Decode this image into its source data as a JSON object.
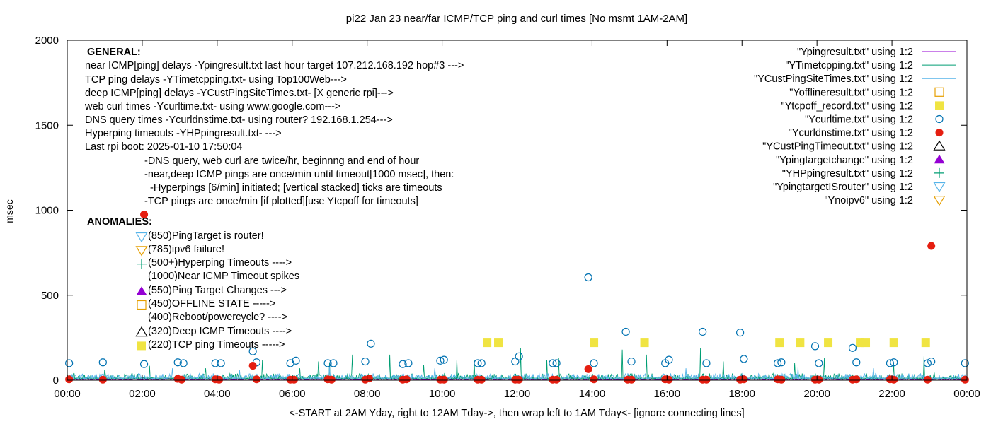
{
  "chart_data": {
    "type": "scatter",
    "title": "pi22 Jan 23  near/far ICMP/TCP ping and curl times [No msmt 1AM-2AM]",
    "ylabel": "msec",
    "xlabel": "<-START at 2AM Yday, right to 12AM Tday->, then wrap left to 1AM Tday<- [ignore connecting lines]",
    "ylim": [
      0,
      2000
    ],
    "xlim": [
      0,
      24
    ],
    "grid": false,
    "legend_position": "top-right",
    "y_ticks": [
      {
        "v": 0,
        "label": "0"
      },
      {
        "v": 500,
        "label": "500"
      },
      {
        "v": 1000,
        "label": "1000"
      },
      {
        "v": 1500,
        "label": "1500"
      },
      {
        "v": 2000,
        "label": "2000"
      }
    ],
    "x_ticks": [
      {
        "v": 0,
        "label": "00:00"
      },
      {
        "v": 2,
        "label": "02:00"
      },
      {
        "v": 4,
        "label": "04:00"
      },
      {
        "v": 6,
        "label": "06:00"
      },
      {
        "v": 8,
        "label": "08:00"
      },
      {
        "v": 10,
        "label": "10:00"
      },
      {
        "v": 12,
        "label": "12:00"
      },
      {
        "v": 14,
        "label": "14:00"
      },
      {
        "v": 16,
        "label": "16:00"
      },
      {
        "v": 18,
        "label": "18:00"
      },
      {
        "v": 20,
        "label": "20:00"
      },
      {
        "v": 22,
        "label": "22:00"
      },
      {
        "v": 24,
        "label": "00:00"
      }
    ],
    "colors": {
      "ypingresult": "#9400d3",
      "ytimetcpping": "#009e73",
      "ycustping": "#56b4e9",
      "yoffline": "#e69f00",
      "ytcpoff": "#f0e442",
      "ycurltime": "#0072b2",
      "ycurldns": "#e51e10",
      "ycustpingtimeout": "#000000",
      "ypingtargetchange": "#9400d3",
      "yhppingresult": "#009e73",
      "ypingtargetisrouter": "#56b4e9",
      "ynoipv6": "#e69f00"
    },
    "series": [
      {
        "name": "\"Ypingresult.txt\" using 1:2",
        "style": "line",
        "color_key": "ypingresult",
        "noise_base": 3,
        "noise_amp": 8,
        "spikes": []
      },
      {
        "name": "\"YTimetcpping.txt\" using 1:2",
        "style": "line",
        "color_key": "ytimetcpping",
        "noise_base": 5,
        "noise_amp": 35,
        "spikes": [
          [
            0.6,
            90
          ],
          [
            1.0,
            60
          ],
          [
            2.2,
            85
          ],
          [
            3.7,
            70
          ],
          [
            4.2,
            80
          ],
          [
            5.2,
            120
          ],
          [
            6.2,
            70
          ],
          [
            6.7,
            110
          ],
          [
            7.0,
            100
          ],
          [
            7.6,
            150
          ],
          [
            8.6,
            150
          ],
          [
            9.5,
            90
          ],
          [
            10.4,
            120
          ],
          [
            10.85,
            120
          ],
          [
            11.4,
            190
          ],
          [
            12.1,
            190
          ],
          [
            12.8,
            120
          ],
          [
            13.1,
            130
          ],
          [
            14.8,
            180
          ],
          [
            15.45,
            150
          ],
          [
            16.9,
            190
          ],
          [
            17.5,
            110
          ],
          [
            18.6,
            170
          ],
          [
            19.4,
            100
          ],
          [
            20.2,
            130
          ],
          [
            21.0,
            150
          ],
          [
            22.05,
            100
          ],
          [
            22.85,
            140
          ]
        ]
      },
      {
        "name": "\"YCustPingSiteTimes.txt\" using 1:2",
        "style": "line",
        "color_key": "ycustping",
        "noise_base": 10,
        "noise_amp": 30,
        "spikes": [
          [
            2.8,
            70
          ],
          [
            4.6,
            60
          ],
          [
            7.0,
            80
          ],
          [
            9.8,
            70
          ],
          [
            13.8,
            75
          ],
          [
            16.5,
            70
          ],
          [
            19.5,
            75
          ],
          [
            21.5,
            70
          ]
        ]
      },
      {
        "name": "\"Yofflineresult.txt\" using 1:2",
        "style": "open-square",
        "color_key": "yoffline",
        "points": []
      },
      {
        "name": "\"Ytcpoff_record.txt\" using 1:2",
        "style": "filled-square",
        "color_key": "ytcpoff",
        "points": [
          [
            11.2,
            220
          ],
          [
            11.5,
            220
          ],
          [
            14.05,
            220
          ],
          [
            15.4,
            220
          ],
          [
            19.0,
            220
          ],
          [
            19.55,
            220
          ],
          [
            20.3,
            220
          ],
          [
            21.15,
            220
          ],
          [
            21.3,
            220
          ],
          [
            22.05,
            220
          ],
          [
            22.9,
            220
          ]
        ]
      },
      {
        "name": "\"Ycurltime.txt\" using 1:2",
        "style": "open-circle",
        "color_key": "ycurltime",
        "points": [
          [
            0.05,
            100
          ],
          [
            0.95,
            105
          ],
          [
            2.05,
            95
          ],
          [
            2.95,
            105
          ],
          [
            3.1,
            100
          ],
          [
            3.95,
            100
          ],
          [
            4.1,
            100
          ],
          [
            4.95,
            170
          ],
          [
            5.05,
            105
          ],
          [
            5.95,
            100
          ],
          [
            6.1,
            115
          ],
          [
            6.95,
            100
          ],
          [
            7.1,
            100
          ],
          [
            7.95,
            110
          ],
          [
            8.1,
            215
          ],
          [
            8.95,
            95
          ],
          [
            9.1,
            100
          ],
          [
            9.95,
            115
          ],
          [
            10.05,
            120
          ],
          [
            10.95,
            100
          ],
          [
            11.05,
            100
          ],
          [
            11.95,
            110
          ],
          [
            12.05,
            140
          ],
          [
            12.95,
            100
          ],
          [
            13.05,
            100
          ],
          [
            13.9,
            605
          ],
          [
            14.05,
            100
          ],
          [
            14.9,
            285
          ],
          [
            15.05,
            110
          ],
          [
            15.95,
            100
          ],
          [
            16.05,
            120
          ],
          [
            16.95,
            285
          ],
          [
            17.05,
            100
          ],
          [
            17.95,
            280
          ],
          [
            18.05,
            125
          ],
          [
            18.95,
            100
          ],
          [
            19.05,
            105
          ],
          [
            19.95,
            200
          ],
          [
            20.05,
            100
          ],
          [
            20.95,
            190
          ],
          [
            21.05,
            105
          ],
          [
            21.95,
            100
          ],
          [
            22.05,
            105
          ],
          [
            22.95,
            100
          ],
          [
            23.05,
            110
          ],
          [
            23.95,
            100
          ]
        ]
      },
      {
        "name": "\"Ycurldnstime.txt\" using 1:2",
        "style": "filled-circle",
        "color_key": "ycurldns",
        "points": [
          [
            0.05,
            5
          ],
          [
            0.95,
            3
          ],
          [
            2.05,
            975
          ],
          [
            2.95,
            8
          ],
          [
            3.05,
            3
          ],
          [
            3.95,
            5
          ],
          [
            4.05,
            3
          ],
          [
            4.95,
            85
          ],
          [
            5.05,
            5
          ],
          [
            5.95,
            3
          ],
          [
            6.05,
            3
          ],
          [
            6.95,
            5
          ],
          [
            7.05,
            3
          ],
          [
            7.95,
            3
          ],
          [
            8.05,
            10
          ],
          [
            8.95,
            3
          ],
          [
            9.05,
            5
          ],
          [
            9.95,
            3
          ],
          [
            10.05,
            3
          ],
          [
            10.95,
            3
          ],
          [
            11.05,
            3
          ],
          [
            11.95,
            3
          ],
          [
            12.05,
            3
          ],
          [
            12.95,
            3
          ],
          [
            13.05,
            3
          ],
          [
            13.9,
            65
          ],
          [
            14.05,
            5
          ],
          [
            14.95,
            3
          ],
          [
            15.05,
            3
          ],
          [
            15.95,
            5
          ],
          [
            16.05,
            3
          ],
          [
            16.95,
            3
          ],
          [
            17.05,
            3
          ],
          [
            17.95,
            3
          ],
          [
            18.05,
            5
          ],
          [
            18.95,
            5
          ],
          [
            19.05,
            3
          ],
          [
            19.95,
            3
          ],
          [
            20.05,
            3
          ],
          [
            20.95,
            3
          ],
          [
            21.05,
            5
          ],
          [
            21.95,
            5
          ],
          [
            22.05,
            3
          ],
          [
            22.95,
            3
          ],
          [
            23.05,
            790
          ],
          [
            23.95,
            3
          ]
        ]
      },
      {
        "name": "\"YCustPingTimeout.txt\" using 1:2",
        "style": "open-triangle",
        "color_key": "ycustpingtimeout",
        "points": []
      },
      {
        "name": "\"Ypingtargetchange\" using 1:2",
        "style": "filled-triangle",
        "color_key": "ypingtargetchange",
        "points": []
      },
      {
        "name": "\"YHPpingresult.txt\" using 1:2",
        "style": "plus",
        "color_key": "yhppingresult",
        "points": []
      },
      {
        "name": "\"YpingtargetISrouter\" using 1:2",
        "style": "open-triangle-down",
        "color_key": "ypingtargetisrouter",
        "points": []
      },
      {
        "name": "\"Ynoipv6\" using 1:2",
        "style": "open-triangle-down",
        "color_key": "ynoipv6",
        "points": []
      }
    ]
  },
  "annotations": {
    "general_header": "GENERAL:",
    "general_lines": [
      "near ICMP[ping] delays -Ypingresult.txt last hour target 107.212.168.192 hop#3 --->",
      "TCP ping delays -YTimetcpping.txt- using Top100Web--->",
      "deep ICMP[ping] delays -YCustPingSiteTimes.txt- [X generic rpi]--->",
      "web curl times -Ycurltime.txt- using www.google.com--->",
      "DNS query times -Ycurldnstime.txt- using router? 192.168.1.254--->",
      "Hyperping timeouts -YHPpingresult.txt- --->",
      "Last rpi boot: 2025-01-10 17:50:04"
    ],
    "notes": [
      "-DNS query, web curl are twice/hr, beginnng and end of hour",
      "-near,deep ICMP pings are once/min until timeout[1000 msec], then:",
      "  -Hyperpings [6/min] initiated; [vertical stacked] ticks are timeouts",
      "-TCP pings are once/min [if plotted][use Ytcpoff for timeouts]"
    ],
    "anomalies_header": "ANOMALIES:",
    "anomalies": [
      {
        "text": "(850)PingTarget is router!",
        "marker": "open-triangle-down",
        "color_key": "ypingtargetisrouter"
      },
      {
        "text": "(785)ipv6 failure!",
        "marker": "open-triangle-down",
        "color_key": "ynoipv6"
      },
      {
        "text": "(500+)Hyperping Timeouts ---->",
        "marker": "plus",
        "color_key": "yhppingresult"
      },
      {
        "text": "(1000)Near ICMP Timeout spikes",
        "marker": "none",
        "color_key": ""
      },
      {
        "text": "(550)Ping Target Changes --->",
        "marker": "filled-triangle",
        "color_key": "ypingtargetchange"
      },
      {
        "text": "(450)OFFLINE STATE ----->",
        "marker": "open-square",
        "color_key": "yoffline"
      },
      {
        "text": "(400)Reboot/powercycle? ---->",
        "marker": "none",
        "color_key": ""
      },
      {
        "text": "(320)Deep ICMP Timeouts ---->",
        "marker": "open-triangle",
        "color_key": "ycustpingtimeout"
      },
      {
        "text": "(220)TCP ping Timeouts ----->",
        "marker": "filled-square",
        "color_key": "ytcpoff"
      }
    ]
  }
}
